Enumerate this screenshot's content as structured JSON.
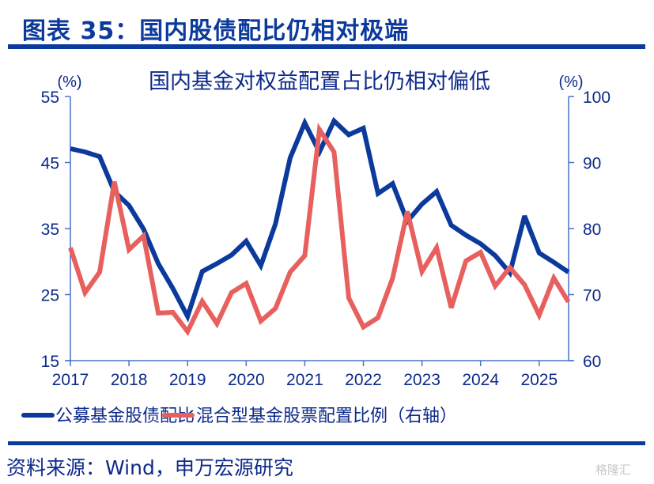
{
  "figure": {
    "title": "图表 35：国内股债配比仍相对极端",
    "source": "资料来源：Wind，申万宏源研究",
    "watermark": "格隆汇"
  },
  "chart_data": {
    "type": "line",
    "title": "国内基金对权益配置占比仍相对偏低",
    "xlabel": "",
    "ylabel_left": "(%)",
    "ylabel_right": "(%)",
    "x_ticks": [
      "2017",
      "2018",
      "2019",
      "2020",
      "2021",
      "2022",
      "2023",
      "2024",
      "2025"
    ],
    "x_range": [
      2017,
      2025.55
    ],
    "y_left": {
      "range": [
        15,
        55
      ],
      "ticks": [
        "15",
        "25",
        "35",
        "45",
        "55"
      ]
    },
    "y_right": {
      "range": [
        60,
        100
      ],
      "ticks": [
        "60",
        "70",
        "80",
        "90",
        "100"
      ]
    },
    "grid": false,
    "legend_position": "bottom",
    "x": [
      2017.0,
      2017.25,
      2017.5,
      2017.75,
      2018.0,
      2018.25,
      2018.5,
      2018.75,
      2019.0,
      2019.25,
      2019.5,
      2019.75,
      2020.0,
      2020.25,
      2020.5,
      2020.75,
      2021.0,
      2021.25,
      2021.5,
      2021.75,
      2022.0,
      2022.25,
      2022.5,
      2022.75,
      2023.0,
      2023.25,
      2023.5,
      2023.75,
      2024.0,
      2024.25,
      2024.5,
      2024.75,
      2025.0,
      2025.25,
      2025.5
    ],
    "series": [
      {
        "name": "公募基金股债配比",
        "axis": "left",
        "color": "#0b3a9c",
        "values": [
          47.1,
          46.6,
          45.9,
          40.6,
          38.5,
          34.9,
          29.7,
          25.9,
          21.7,
          28.5,
          29.7,
          31.0,
          33.1,
          29.4,
          35.7,
          45.7,
          51.0,
          46.6,
          51.3,
          49.2,
          50.2,
          40.3,
          41.8,
          36.1,
          38.7,
          40.6,
          35.5,
          34.0,
          32.7,
          30.9,
          28.3,
          36.9,
          31.3,
          29.9,
          28.4
        ]
      },
      {
        "name": "混合型基金股票配置比例（右轴）",
        "axis": "right",
        "color": "#e8605e",
        "values": [
          77.1,
          70.3,
          73.4,
          87.1,
          76.8,
          78.9,
          67.2,
          67.3,
          64.4,
          69.0,
          65.6,
          70.3,
          71.7,
          66.0,
          67.9,
          73.4,
          75.9,
          95.0,
          91.6,
          69.5,
          65.1,
          66.5,
          72.5,
          82.6,
          73.5,
          77.1,
          68.0,
          75.1,
          76.4,
          71.3,
          74.1,
          71.5,
          66.9,
          72.5,
          68.9
        ]
      }
    ]
  }
}
